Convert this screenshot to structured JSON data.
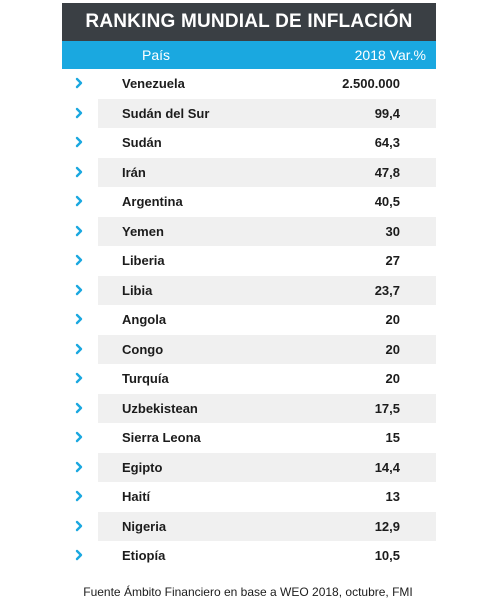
{
  "title": "RANKING MUNDIAL DE INFLACIÓN",
  "header": {
    "country": "País",
    "value": "2018 Var.%"
  },
  "source": "Fuente Ámbito Financiero en base a WEO 2018, octubre, FMI",
  "colors": {
    "title_bg": "#3a3f44",
    "header_bg": "#1aa8e0",
    "chevron": "#1aa8e0",
    "stripe": "#f0f0f0"
  },
  "icons": {
    "row_marker": "chevron-right-icon"
  },
  "chart_data": {
    "type": "table",
    "title": "RANKING MUNDIAL DE INFLACIÓN",
    "columns": [
      "País",
      "2018 Var.%"
    ],
    "rows": [
      {
        "country": "Venezuela",
        "value": "2.500.000"
      },
      {
        "country": "Sudán del Sur",
        "value": "99,4"
      },
      {
        "country": "Sudán",
        "value": "64,3"
      },
      {
        "country": "Irán",
        "value": "47,8"
      },
      {
        "country": "Argentina",
        "value": "40,5"
      },
      {
        "country": "Yemen",
        "value": "30"
      },
      {
        "country": "Liberia",
        "value": "27"
      },
      {
        "country": "Libia",
        "value": "23,7"
      },
      {
        "country": "Angola",
        "value": "20"
      },
      {
        "country": "Congo",
        "value": "20"
      },
      {
        "country": "Turquía",
        "value": "20"
      },
      {
        "country": "Uzbekistean",
        "value": "17,5"
      },
      {
        "country": "Sierra Leona",
        "value": "15"
      },
      {
        "country": "Egipto",
        "value": "14,4"
      },
      {
        "country": "Haití",
        "value": "13"
      },
      {
        "country": "Nigeria",
        "value": "12,9"
      },
      {
        "country": "Etiopía",
        "value": "10,5"
      }
    ]
  }
}
